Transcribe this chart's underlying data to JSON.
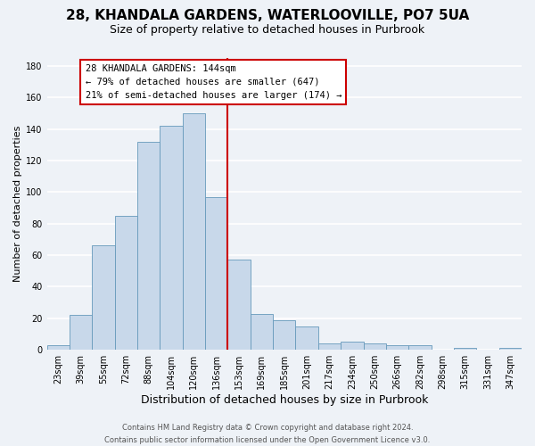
{
  "title": "28, KHANDALA GARDENS, WATERLOOVILLE, PO7 5UA",
  "subtitle": "Size of property relative to detached houses in Purbrook",
  "xlabel": "Distribution of detached houses by size in Purbrook",
  "ylabel": "Number of detached properties",
  "bar_labels": [
    "23sqm",
    "39sqm",
    "55sqm",
    "72sqm",
    "88sqm",
    "104sqm",
    "120sqm",
    "136sqm",
    "153sqm",
    "169sqm",
    "185sqm",
    "201sqm",
    "217sqm",
    "234sqm",
    "250sqm",
    "266sqm",
    "282sqm",
    "298sqm",
    "315sqm",
    "331sqm",
    "347sqm"
  ],
  "bar_values": [
    3,
    22,
    66,
    85,
    132,
    142,
    150,
    97,
    57,
    23,
    19,
    15,
    4,
    5,
    4,
    3,
    3,
    0,
    1,
    0,
    1
  ],
  "bar_color": "#c8d8ea",
  "bar_edge_color": "#6699bb",
  "vline_x_index": 7,
  "vline_color": "#cc0000",
  "annotation_title": "28 KHANDALA GARDENS: 144sqm",
  "annotation_line1": "← 79% of detached houses are smaller (647)",
  "annotation_line2": "21% of semi-detached houses are larger (174) →",
  "annotation_box_color": "#ffffff",
  "annotation_box_edge": "#cc0000",
  "ylim": [
    0,
    185
  ],
  "yticks": [
    0,
    20,
    40,
    60,
    80,
    100,
    120,
    140,
    160,
    180
  ],
  "footer_line1": "Contains HM Land Registry data © Crown copyright and database right 2024.",
  "footer_line2": "Contains public sector information licensed under the Open Government Licence v3.0.",
  "background_color": "#eef2f7",
  "grid_color": "#ffffff",
  "title_fontsize": 11,
  "subtitle_fontsize": 9,
  "xlabel_fontsize": 9,
  "ylabel_fontsize": 8,
  "tick_fontsize": 7,
  "footer_fontsize": 6,
  "annotation_fontsize": 7.5
}
